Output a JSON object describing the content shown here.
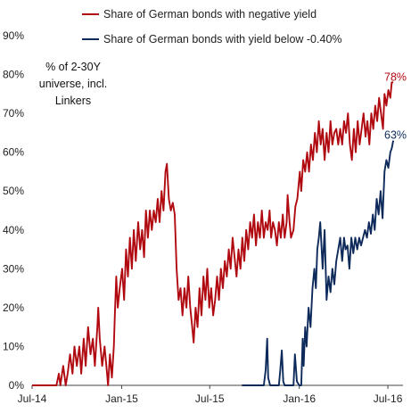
{
  "chart_data": {
    "type": "line",
    "title": "",
    "xlabel": "",
    "ylabel": "",
    "annotation": [
      "% of 2-30Y",
      "universe, incl.",
      "Linkers"
    ],
    "xlim": [
      "2014-07-01",
      "2016-08-01"
    ],
    "ylim": [
      0,
      90
    ],
    "x_ticks": [
      {
        "date": "2014-07-01",
        "label": "Jul-14"
      },
      {
        "date": "2015-01-01",
        "label": "Jan-15"
      },
      {
        "date": "2015-07-01",
        "label": "Jul-15"
      },
      {
        "date": "2016-01-01",
        "label": "Jan-16"
      },
      {
        "date": "2016-07-01",
        "label": "Jul-16"
      }
    ],
    "y_ticks": [
      {
        "value": 0,
        "label": "0%"
      },
      {
        "value": 10,
        "label": "10%"
      },
      {
        "value": 20,
        "label": "20%"
      },
      {
        "value": 30,
        "label": "30%"
      },
      {
        "value": 40,
        "label": "40%"
      },
      {
        "value": 50,
        "label": "50%"
      },
      {
        "value": 60,
        "label": "60%"
      },
      {
        "value": 70,
        "label": "70%"
      },
      {
        "value": 80,
        "label": "80%"
      },
      {
        "value": 90,
        "label": "90%"
      }
    ],
    "grid": false,
    "legend_position": "top",
    "series": [
      {
        "name": "Share of German bonds with negative yield",
        "color": "#b00a10",
        "end_label": "78%",
        "points": [
          [
            "2014-07-01",
            0
          ],
          [
            "2014-08-10",
            0
          ],
          [
            "2014-08-20",
            0
          ],
          [
            "2014-08-25",
            3
          ],
          [
            "2014-08-28",
            0
          ],
          [
            "2014-09-03",
            5
          ],
          [
            "2014-09-08",
            0
          ],
          [
            "2014-09-12",
            3
          ],
          [
            "2014-09-17",
            8
          ],
          [
            "2014-09-22",
            3
          ],
          [
            "2014-09-26",
            10
          ],
          [
            "2014-10-01",
            5
          ],
          [
            "2014-10-06",
            10
          ],
          [
            "2014-10-10",
            3
          ],
          [
            "2014-10-15",
            12
          ],
          [
            "2014-10-19",
            5
          ],
          [
            "2014-10-24",
            15
          ],
          [
            "2014-10-29",
            8
          ],
          [
            "2014-11-03",
            12
          ],
          [
            "2014-11-07",
            5
          ],
          [
            "2014-11-12",
            15
          ],
          [
            "2014-11-14",
            20
          ],
          [
            "2014-11-17",
            12
          ],
          [
            "2014-11-22",
            5
          ],
          [
            "2014-11-27",
            10
          ],
          [
            "2014-12-02",
            3
          ],
          [
            "2014-12-04",
            0
          ],
          [
            "2014-12-08",
            8
          ],
          [
            "2014-12-12",
            2
          ],
          [
            "2014-12-16",
            10
          ],
          [
            "2014-12-18",
            18
          ],
          [
            "2014-12-21",
            28
          ],
          [
            "2014-12-24",
            20
          ],
          [
            "2014-12-28",
            25
          ],
          [
            "2015-01-02",
            30
          ],
          [
            "2015-01-06",
            22
          ],
          [
            "2015-01-10",
            35
          ],
          [
            "2015-01-14",
            28
          ],
          [
            "2015-01-18",
            38
          ],
          [
            "2015-01-22",
            30
          ],
          [
            "2015-01-26",
            40
          ],
          [
            "2015-01-30",
            32
          ],
          [
            "2015-02-04",
            42
          ],
          [
            "2015-02-08",
            35
          ],
          [
            "2015-02-12",
            40
          ],
          [
            "2015-02-16",
            33
          ],
          [
            "2015-02-20",
            45
          ],
          [
            "2015-02-24",
            38
          ],
          [
            "2015-02-28",
            45
          ],
          [
            "2015-03-04",
            40
          ],
          [
            "2015-03-08",
            45
          ],
          [
            "2015-03-12",
            42
          ],
          [
            "2015-03-16",
            48
          ],
          [
            "2015-03-20",
            42
          ],
          [
            "2015-03-24",
            50
          ],
          [
            "2015-03-28",
            45
          ],
          [
            "2015-04-01",
            55
          ],
          [
            "2015-04-04",
            57
          ],
          [
            "2015-04-08",
            48
          ],
          [
            "2015-04-12",
            45
          ],
          [
            "2015-04-16",
            47
          ],
          [
            "2015-04-20",
            44
          ],
          [
            "2015-04-24",
            30
          ],
          [
            "2015-04-28",
            22
          ],
          [
            "2015-05-02",
            25
          ],
          [
            "2015-05-06",
            18
          ],
          [
            "2015-05-10",
            25
          ],
          [
            "2015-05-14",
            20
          ],
          [
            "2015-05-18",
            28
          ],
          [
            "2015-05-22",
            20
          ],
          [
            "2015-05-26",
            15
          ],
          [
            "2015-05-29",
            11
          ],
          [
            "2015-06-02",
            20
          ],
          [
            "2015-06-06",
            15
          ],
          [
            "2015-06-10",
            25
          ],
          [
            "2015-06-14",
            18
          ],
          [
            "2015-06-18",
            28
          ],
          [
            "2015-06-22",
            22
          ],
          [
            "2015-06-26",
            30
          ],
          [
            "2015-06-30",
            20
          ],
          [
            "2015-07-04",
            25
          ],
          [
            "2015-07-08",
            18
          ],
          [
            "2015-07-12",
            22
          ],
          [
            "2015-07-16",
            28
          ],
          [
            "2015-07-20",
            22
          ],
          [
            "2015-07-24",
            30
          ],
          [
            "2015-07-28",
            25
          ],
          [
            "2015-08-01",
            32
          ],
          [
            "2015-08-05",
            28
          ],
          [
            "2015-08-09",
            35
          ],
          [
            "2015-08-13",
            30
          ],
          [
            "2015-08-17",
            38
          ],
          [
            "2015-08-21",
            33
          ],
          [
            "2015-08-25",
            28
          ],
          [
            "2015-08-29",
            35
          ],
          [
            "2015-09-02",
            30
          ],
          [
            "2015-09-06",
            38
          ],
          [
            "2015-09-10",
            32
          ],
          [
            "2015-09-14",
            40
          ],
          [
            "2015-09-18",
            35
          ],
          [
            "2015-09-22",
            42
          ],
          [
            "2015-09-26",
            38
          ],
          [
            "2015-09-30",
            44
          ],
          [
            "2015-10-04",
            36
          ],
          [
            "2015-10-08",
            42
          ],
          [
            "2015-10-12",
            38
          ],
          [
            "2015-10-16",
            45
          ],
          [
            "2015-10-20",
            38
          ],
          [
            "2015-10-24",
            42
          ],
          [
            "2015-10-28",
            40
          ],
          [
            "2015-11-01",
            45
          ],
          [
            "2015-11-04",
            38
          ],
          [
            "2015-11-08",
            42
          ],
          [
            "2015-11-12",
            40
          ],
          [
            "2015-11-16",
            36
          ],
          [
            "2015-11-20",
            42
          ],
          [
            "2015-11-24",
            38
          ],
          [
            "2015-11-28",
            44
          ],
          [
            "2015-12-02",
            38
          ],
          [
            "2015-12-06",
            42
          ],
          [
            "2015-12-08",
            49
          ],
          [
            "2015-12-12",
            42
          ],
          [
            "2015-12-15",
            38
          ],
          [
            "2015-12-20",
            40
          ],
          [
            "2015-12-24",
            46
          ],
          [
            "2015-12-28",
            48
          ],
          [
            "2016-01-02",
            55
          ],
          [
            "2016-01-05",
            50
          ],
          [
            "2016-01-09",
            58
          ],
          [
            "2016-01-13",
            55
          ],
          [
            "2016-01-17",
            60
          ],
          [
            "2016-01-21",
            55
          ],
          [
            "2016-01-25",
            62
          ],
          [
            "2016-01-29",
            58
          ],
          [
            "2016-02-02",
            65
          ],
          [
            "2016-02-06",
            60
          ],
          [
            "2016-02-10",
            68
          ],
          [
            "2016-02-14",
            62
          ],
          [
            "2016-02-18",
            66
          ],
          [
            "2016-02-22",
            58
          ],
          [
            "2016-02-26",
            65
          ],
          [
            "2016-03-01",
            60
          ],
          [
            "2016-03-05",
            68
          ],
          [
            "2016-03-09",
            62
          ],
          [
            "2016-03-13",
            65
          ],
          [
            "2016-03-17",
            66
          ],
          [
            "2016-03-21",
            62
          ],
          [
            "2016-03-25",
            66
          ],
          [
            "2016-03-29",
            62
          ],
          [
            "2016-04-02",
            68
          ],
          [
            "2016-04-06",
            65
          ],
          [
            "2016-04-10",
            70
          ],
          [
            "2016-04-14",
            62
          ],
          [
            "2016-04-18",
            58
          ],
          [
            "2016-04-22",
            66
          ],
          [
            "2016-04-26",
            60
          ],
          [
            "2016-04-30",
            68
          ],
          [
            "2016-05-04",
            62
          ],
          [
            "2016-05-08",
            66
          ],
          [
            "2016-05-12",
            70
          ],
          [
            "2016-05-16",
            64
          ],
          [
            "2016-05-20",
            68
          ],
          [
            "2016-05-24",
            62
          ],
          [
            "2016-05-28",
            70
          ],
          [
            "2016-06-01",
            66
          ],
          [
            "2016-06-05",
            72
          ],
          [
            "2016-06-09",
            68
          ],
          [
            "2016-06-13",
            74
          ],
          [
            "2016-06-17",
            70
          ],
          [
            "2016-06-21",
            66
          ],
          [
            "2016-06-24",
            75
          ],
          [
            "2016-06-28",
            72
          ],
          [
            "2016-07-02",
            76
          ],
          [
            "2016-07-06",
            74
          ],
          [
            "2016-07-09",
            78
          ],
          [
            "2016-07-12",
            78
          ]
        ]
      },
      {
        "name": "Share of German bonds with yield below -0.40%",
        "color": "#0d2a5b",
        "end_label": "63%",
        "points": [
          [
            "2015-09-05",
            0
          ],
          [
            "2015-10-20",
            0
          ],
          [
            "2015-10-24",
            4
          ],
          [
            "2015-10-27",
            12
          ],
          [
            "2015-10-29",
            2
          ],
          [
            "2015-11-02",
            0
          ],
          [
            "2015-11-20",
            0
          ],
          [
            "2015-11-23",
            4
          ],
          [
            "2015-11-26",
            9
          ],
          [
            "2015-11-29",
            1
          ],
          [
            "2015-12-02",
            0
          ],
          [
            "2015-12-20",
            0
          ],
          [
            "2015-12-23",
            8
          ],
          [
            "2015-12-27",
            1
          ],
          [
            "2016-01-01",
            0
          ],
          [
            "2016-01-05",
            0
          ],
          [
            "2016-01-08",
            12
          ],
          [
            "2016-01-10",
            5
          ],
          [
            "2016-01-13",
            15
          ],
          [
            "2016-01-16",
            10
          ],
          [
            "2016-01-20",
            20
          ],
          [
            "2016-01-24",
            15
          ],
          [
            "2016-01-28",
            25
          ],
          [
            "2016-02-01",
            30
          ],
          [
            "2016-02-04",
            25
          ],
          [
            "2016-02-07",
            35
          ],
          [
            "2016-02-10",
            38
          ],
          [
            "2016-02-13",
            42
          ],
          [
            "2016-02-16",
            35
          ],
          [
            "2016-02-18",
            30
          ],
          [
            "2016-02-22",
            40
          ],
          [
            "2016-02-26",
            22
          ],
          [
            "2016-03-01",
            28
          ],
          [
            "2016-03-05",
            24
          ],
          [
            "2016-03-09",
            30
          ],
          [
            "2016-03-13",
            26
          ],
          [
            "2016-03-17",
            32
          ],
          [
            "2016-03-21",
            35
          ],
          [
            "2016-03-25",
            38
          ],
          [
            "2016-03-29",
            32
          ],
          [
            "2016-04-02",
            38
          ],
          [
            "2016-04-05",
            35
          ],
          [
            "2016-04-09",
            36
          ],
          [
            "2016-04-13",
            30
          ],
          [
            "2016-04-17",
            38
          ],
          [
            "2016-04-21",
            34
          ],
          [
            "2016-04-25",
            38
          ],
          [
            "2016-04-29",
            35
          ],
          [
            "2016-05-03",
            38
          ],
          [
            "2016-05-07",
            36
          ],
          [
            "2016-05-11",
            38
          ],
          [
            "2016-05-15",
            40
          ],
          [
            "2016-05-19",
            38
          ],
          [
            "2016-05-23",
            42
          ],
          [
            "2016-05-27",
            39
          ],
          [
            "2016-05-31",
            44
          ],
          [
            "2016-06-04",
            40
          ],
          [
            "2016-06-08",
            48
          ],
          [
            "2016-06-12",
            44
          ],
          [
            "2016-06-16",
            50
          ],
          [
            "2016-06-20",
            43
          ],
          [
            "2016-06-24",
            55
          ],
          [
            "2016-06-28",
            58
          ],
          [
            "2016-07-02",
            56
          ],
          [
            "2016-07-06",
            60
          ],
          [
            "2016-07-09",
            61
          ],
          [
            "2016-07-12",
            63
          ]
        ]
      }
    ]
  }
}
